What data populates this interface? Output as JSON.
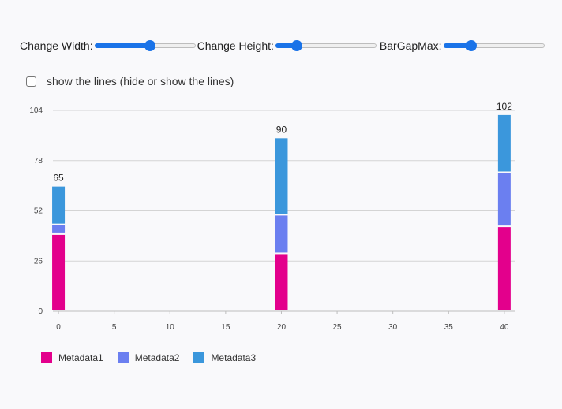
{
  "controls": {
    "width_label": "Change Width:",
    "height_label": "Change Height:",
    "bargap_label": "BarGapMax:",
    "width_value": 0.56,
    "height_value": 0.18,
    "bargap_value": 0.25,
    "accent_color": "#1a73e8"
  },
  "toggle": {
    "label": "show the lines (hide or show the lines)",
    "checked": false
  },
  "chart_data": {
    "type": "bar",
    "stacked": true,
    "x": [
      0,
      20,
      40
    ],
    "xlim": [
      -0.5,
      41
    ],
    "ylim": [
      0,
      104
    ],
    "y_ticks": [
      0,
      26,
      52,
      78,
      104
    ],
    "x_ticks": [
      0,
      5,
      10,
      15,
      20,
      25,
      30,
      35,
      40
    ],
    "grid": true,
    "legend": "bottom-left",
    "totals": [
      "65",
      "90",
      "102"
    ],
    "series": [
      {
        "name": "Metadata1",
        "color": "#e3008c",
        "values": [
          40,
          30,
          44
        ]
      },
      {
        "name": "Metadata2",
        "color": "#6b7ff0",
        "values": [
          5,
          20,
          28
        ]
      },
      {
        "name": "Metadata3",
        "color": "#3b97dc",
        "values": [
          20,
          40,
          30
        ]
      }
    ]
  }
}
